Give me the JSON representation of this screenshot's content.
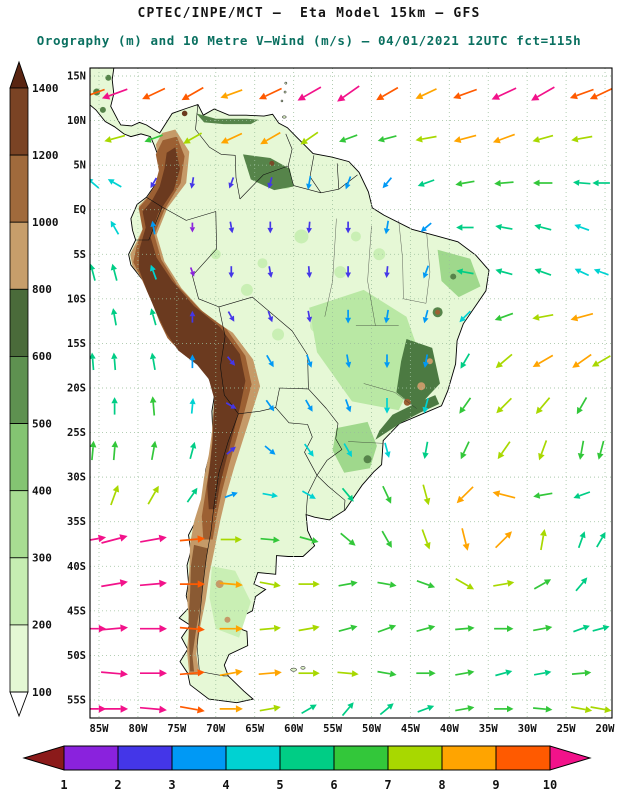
{
  "header": {
    "line1": "CPTEC/INPE/MCT –  Eta Model 15km – GFS",
    "line2": "Orography (m) and 10 Metre V–Wind (m/s) – 04/01/2021 12UTC fct=115h",
    "line2_color": "#0a7060"
  },
  "axes": {
    "lat_labels": [
      "15N",
      "10N",
      "5N",
      "EQ",
      "5S",
      "10S",
      "15S",
      "20S",
      "25S",
      "30S",
      "35S",
      "40S",
      "45S",
      "50S",
      "55S"
    ],
    "lat_values": [
      15,
      10,
      5,
      0,
      -5,
      -10,
      -15,
      -20,
      -25,
      -30,
      -35,
      -40,
      -45,
      -50,
      -55
    ],
    "lon_labels": [
      "85W",
      "80W",
      "75W",
      "70W",
      "65W",
      "60W",
      "55W",
      "50W",
      "45W",
      "40W",
      "35W",
      "30W",
      "25W",
      "20W"
    ],
    "lon_values": [
      -85,
      -80,
      -75,
      -70,
      -65,
      -60,
      -55,
      -50,
      -45,
      -40,
      -35,
      -30,
      -25,
      -20
    ]
  },
  "chart_data": {
    "type": "heatmap",
    "subtype": "orography-shaded-map-with-10m-wind-vectors",
    "title": "CPTEC/INPE/MCT –  Eta Model 15km – GFS",
    "subtitle": "Orography (m) and 10 Metre V–Wind (m/s) – 04/01/2021 12UTC fct=115h",
    "grid_interval_deg": 5,
    "orography_scale_m": {
      "unit": "m",
      "tick_labels_top_to_bottom": [
        "1400",
        "1200",
        "1000",
        "800",
        "600",
        "500",
        "400",
        "300",
        "200",
        "100"
      ],
      "segment_colors_top_to_bottom": [
        "#7a4324",
        "#a06a3c",
        "#c79e6b",
        "#4a6b3a",
        "#5e9150",
        "#84c472",
        "#a8dd92",
        "#c6edb2",
        "#e4f8d4"
      ],
      "cap_top_color": "#592512",
      "cap_bottom_color": "#ffffff"
    },
    "wind_speed_scale_ms": {
      "unit": "m/s",
      "tick_labels": [
        "1",
        "2",
        "3",
        "4",
        "5",
        "6",
        "7",
        "8",
        "9",
        "10"
      ],
      "segment_colors": [
        "#8a22dd",
        "#4436e8",
        "#0099f5",
        "#00d2d2",
        "#00cd85",
        "#33c73a",
        "#a8d800",
        "#ffa400",
        "#ff5a00"
      ],
      "cap_left_color": "#8b1a1a",
      "cap_right_color": "#f2128a"
    },
    "wind_vectors": {
      "columns": [
        "lon",
        "lat",
        "direction_deg_toward_math",
        "speed_ms"
      ],
      "points": [
        [
          -83,
          13,
          200,
          10
        ],
        [
          -78,
          13,
          205,
          9
        ],
        [
          -73,
          13,
          210,
          9
        ],
        [
          -68,
          13,
          200,
          8
        ],
        [
          -63,
          13,
          205,
          9
        ],
        [
          -58,
          13,
          210,
          10
        ],
        [
          -53,
          13,
          215,
          10
        ],
        [
          -48,
          13,
          210,
          9
        ],
        [
          -43,
          13,
          205,
          8
        ],
        [
          -38,
          13,
          200,
          9
        ],
        [
          -33,
          13,
          205,
          10
        ],
        [
          -28,
          13,
          210,
          10
        ],
        [
          -23,
          13,
          200,
          9
        ],
        [
          -83,
          8,
          195,
          7
        ],
        [
          -78,
          8,
          200,
          6
        ],
        [
          -73,
          8,
          210,
          7
        ],
        [
          -68,
          8,
          205,
          8
        ],
        [
          -63,
          8,
          210,
          8
        ],
        [
          -58,
          8,
          215,
          7
        ],
        [
          -53,
          8,
          200,
          6
        ],
        [
          -48,
          8,
          195,
          6
        ],
        [
          -43,
          8,
          190,
          7
        ],
        [
          -38,
          8,
          195,
          8
        ],
        [
          -33,
          8,
          200,
          8
        ],
        [
          -28,
          8,
          195,
          7
        ],
        [
          -23,
          8,
          190,
          7
        ],
        [
          -83,
          3,
          150,
          4
        ],
        [
          -78,
          3,
          240,
          2
        ],
        [
          -73,
          3,
          260,
          2
        ],
        [
          -68,
          3,
          250,
          2
        ],
        [
          -63,
          3,
          255,
          2
        ],
        [
          -58,
          3,
          260,
          3
        ],
        [
          -53,
          3,
          250,
          3
        ],
        [
          -48,
          3,
          230,
          3
        ],
        [
          -43,
          3,
          200,
          5
        ],
        [
          -38,
          3,
          190,
          6
        ],
        [
          -33,
          3,
          185,
          6
        ],
        [
          -28,
          3,
          180,
          6
        ],
        [
          -23,
          3,
          175,
          5
        ],
        [
          -83,
          -2,
          120,
          4
        ],
        [
          -78,
          -2,
          100,
          3
        ],
        [
          -73,
          -2,
          270,
          1
        ],
        [
          -68,
          -2,
          280,
          2
        ],
        [
          -63,
          -2,
          270,
          2
        ],
        [
          -58,
          -2,
          265,
          2
        ],
        [
          -53,
          -2,
          270,
          2
        ],
        [
          -48,
          -2,
          260,
          3
        ],
        [
          -43,
          -2,
          220,
          3
        ],
        [
          -38,
          -2,
          180,
          5
        ],
        [
          -33,
          -2,
          170,
          5
        ],
        [
          -28,
          -2,
          165,
          5
        ],
        [
          -23,
          -2,
          160,
          4
        ],
        [
          -83,
          -7,
          105,
          5
        ],
        [
          -78,
          -7,
          110,
          4
        ],
        [
          -73,
          -7,
          290,
          1
        ],
        [
          -68,
          -7,
          270,
          2
        ],
        [
          -63,
          -7,
          280,
          2
        ],
        [
          -58,
          -7,
          275,
          2
        ],
        [
          -53,
          -7,
          270,
          2
        ],
        [
          -48,
          -7,
          265,
          2
        ],
        [
          -43,
          -7,
          250,
          3
        ],
        [
          -38,
          -7,
          170,
          5
        ],
        [
          -33,
          -7,
          165,
          5
        ],
        [
          -28,
          -7,
          160,
          5
        ],
        [
          -23,
          -7,
          155,
          4
        ],
        [
          -83,
          -12,
          100,
          5
        ],
        [
          -78,
          -12,
          105,
          5
        ],
        [
          -73,
          -12,
          90,
          2
        ],
        [
          -68,
          -12,
          300,
          2
        ],
        [
          -63,
          -12,
          290,
          2
        ],
        [
          -58,
          -12,
          280,
          2
        ],
        [
          -53,
          -12,
          270,
          3
        ],
        [
          -48,
          -12,
          260,
          3
        ],
        [
          -43,
          -12,
          255,
          3
        ],
        [
          -38,
          -12,
          225,
          4
        ],
        [
          -33,
          -12,
          200,
          6
        ],
        [
          -28,
          -12,
          190,
          7
        ],
        [
          -23,
          -12,
          195,
          8
        ],
        [
          -83,
          -17,
          95,
          5
        ],
        [
          -78,
          -17,
          100,
          5
        ],
        [
          -73,
          -17,
          90,
          3
        ],
        [
          -68,
          -17,
          310,
          2
        ],
        [
          -63,
          -17,
          300,
          3
        ],
        [
          -58,
          -17,
          290,
          3
        ],
        [
          -53,
          -17,
          280,
          3
        ],
        [
          -48,
          -17,
          270,
          3
        ],
        [
          -43,
          -17,
          260,
          3
        ],
        [
          -38,
          -17,
          240,
          5
        ],
        [
          -33,
          -17,
          220,
          7
        ],
        [
          -28,
          -17,
          210,
          8
        ],
        [
          -23,
          -17,
          215,
          8
        ],
        [
          -83,
          -22,
          90,
          5
        ],
        [
          -78,
          -22,
          95,
          6
        ],
        [
          -73,
          -22,
          85,
          4
        ],
        [
          -68,
          -22,
          330,
          2
        ],
        [
          -63,
          -22,
          305,
          3
        ],
        [
          -58,
          -22,
          300,
          3
        ],
        [
          -53,
          -22,
          290,
          3
        ],
        [
          -48,
          -22,
          270,
          4
        ],
        [
          -43,
          -22,
          255,
          4
        ],
        [
          -38,
          -22,
          235,
          6
        ],
        [
          -33,
          -22,
          225,
          7
        ],
        [
          -28,
          -22,
          230,
          7
        ],
        [
          -23,
          -22,
          240,
          6
        ],
        [
          -83,
          -27,
          85,
          6
        ],
        [
          -78,
          -27,
          80,
          6
        ],
        [
          -73,
          -27,
          75,
          5
        ],
        [
          -68,
          -27,
          40,
          2
        ],
        [
          -63,
          -27,
          320,
          3
        ],
        [
          -58,
          -27,
          305,
          4
        ],
        [
          -53,
          -27,
          300,
          4
        ],
        [
          -48,
          -27,
          285,
          4
        ],
        [
          -43,
          -27,
          260,
          5
        ],
        [
          -38,
          -27,
          245,
          6
        ],
        [
          -33,
          -27,
          235,
          7
        ],
        [
          -28,
          -27,
          250,
          7
        ],
        [
          -23,
          -27,
          260,
          6
        ],
        [
          -83,
          -32,
          70,
          7
        ],
        [
          -78,
          -32,
          60,
          7
        ],
        [
          -73,
          -32,
          55,
          5
        ],
        [
          -68,
          -32,
          20,
          3
        ],
        [
          -63,
          -32,
          350,
          4
        ],
        [
          -58,
          -32,
          330,
          4
        ],
        [
          -53,
          -32,
          310,
          5
        ],
        [
          -48,
          -32,
          295,
          6
        ],
        [
          -43,
          -32,
          285,
          7
        ],
        [
          -38,
          -32,
          225,
          8
        ],
        [
          -33,
          -32,
          166,
          8
        ],
        [
          -28,
          -32,
          190,
          6
        ],
        [
          -23,
          -32,
          200,
          5
        ],
        [
          -83,
          -37,
          15,
          10
        ],
        [
          -78,
          -37,
          10,
          10
        ],
        [
          -73,
          -37,
          5,
          9
        ],
        [
          -68,
          -37,
          0,
          7
        ],
        [
          -63,
          -37,
          355,
          6
        ],
        [
          -58,
          -37,
          345,
          6
        ],
        [
          -53,
          -37,
          320,
          6
        ],
        [
          -48,
          -37,
          300,
          6
        ],
        [
          -43,
          -37,
          290,
          7
        ],
        [
          -38,
          -37,
          284,
          8
        ],
        [
          -33,
          -37,
          45,
          8
        ],
        [
          -28,
          -37,
          80,
          7
        ],
        [
          -23,
          -37,
          70,
          5
        ],
        [
          -83,
          -42,
          10,
          10
        ],
        [
          -78,
          -42,
          5,
          10
        ],
        [
          -73,
          -42,
          0,
          9
        ],
        [
          -68,
          -42,
          355,
          8
        ],
        [
          -63,
          -42,
          350,
          7
        ],
        [
          -58,
          -42,
          0,
          7
        ],
        [
          -53,
          -42,
          10,
          6
        ],
        [
          -48,
          -42,
          350,
          6
        ],
        [
          -43,
          -42,
          340,
          6
        ],
        [
          -38,
          -42,
          330,
          7
        ],
        [
          -33,
          -42,
          10,
          7
        ],
        [
          -28,
          -42,
          30,
          6
        ],
        [
          -23,
          -42,
          50,
          5
        ],
        [
          -83,
          -47,
          5,
          10
        ],
        [
          -78,
          -47,
          0,
          10
        ],
        [
          -73,
          -47,
          355,
          9
        ],
        [
          -68,
          -47,
          0,
          8
        ],
        [
          -63,
          -47,
          5,
          7
        ],
        [
          -58,
          -47,
          10,
          7
        ],
        [
          -53,
          -47,
          15,
          6
        ],
        [
          -48,
          -47,
          20,
          6
        ],
        [
          -43,
          -47,
          15,
          6
        ],
        [
          -38,
          -47,
          5,
          6
        ],
        [
          -33,
          -47,
          0,
          6
        ],
        [
          -28,
          -47,
          10,
          6
        ],
        [
          -23,
          -47,
          20,
          5
        ],
        [
          -83,
          -52,
          355,
          10
        ],
        [
          -78,
          -52,
          0,
          10
        ],
        [
          -73,
          -52,
          5,
          9
        ],
        [
          -68,
          -52,
          10,
          8
        ],
        [
          -63,
          -52,
          5,
          8
        ],
        [
          -58,
          -52,
          0,
          7
        ],
        [
          -53,
          -52,
          355,
          7
        ],
        [
          -48,
          -52,
          350,
          6
        ],
        [
          -43,
          -52,
          0,
          6
        ],
        [
          -38,
          -52,
          10,
          6
        ],
        [
          -33,
          -52,
          15,
          5
        ],
        [
          -28,
          -52,
          10,
          5
        ],
        [
          -23,
          -52,
          5,
          6
        ],
        [
          -83,
          -56,
          0,
          10
        ],
        [
          -78,
          -56,
          355,
          10
        ],
        [
          -73,
          -56,
          350,
          9
        ],
        [
          -68,
          -56,
          0,
          8
        ],
        [
          -63,
          -56,
          10,
          7
        ],
        [
          -58,
          -56,
          30,
          5
        ],
        [
          -53,
          -56,
          50,
          5
        ],
        [
          -48,
          -56,
          40,
          5
        ],
        [
          -43,
          -56,
          20,
          5
        ],
        [
          -38,
          -56,
          10,
          6
        ],
        [
          -33,
          -56,
          0,
          6
        ],
        [
          -28,
          -56,
          355,
          6
        ],
        [
          -23,
          -56,
          350,
          7
        ],
        [
          -20.5,
          13,
          205,
          9
        ],
        [
          -20.5,
          3,
          180,
          5
        ],
        [
          -20.5,
          -7,
          160,
          4
        ],
        [
          -20.5,
          -17,
          210,
          7
        ],
        [
          -20.5,
          -27,
          255,
          6
        ],
        [
          -20.5,
          -37,
          60,
          5
        ],
        [
          -20.5,
          -47,
          15,
          5
        ],
        [
          -20.5,
          -56,
          350,
          7
        ],
        [
          -85.8,
          13,
          200,
          9
        ],
        [
          -85.8,
          3,
          140,
          4
        ],
        [
          -85.8,
          -7,
          105,
          5
        ],
        [
          -85.8,
          -17,
          95,
          5
        ],
        [
          -85.8,
          -27,
          85,
          6
        ],
        [
          -85.8,
          -37,
          10,
          10
        ],
        [
          -85.8,
          -47,
          0,
          10
        ],
        [
          -85.8,
          -56,
          0,
          10
        ]
      ]
    }
  }
}
